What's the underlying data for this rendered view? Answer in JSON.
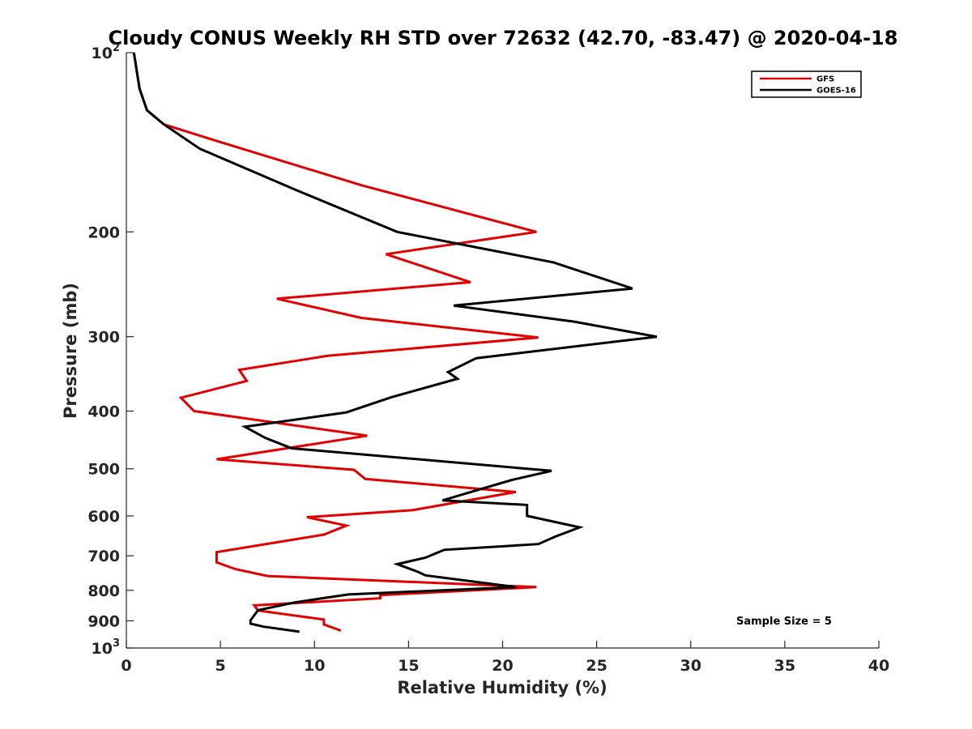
{
  "chart_data": {
    "type": "line",
    "title": "Cloudy CONUS Weekly RH STD over 72632 (42.70, -83.47) @ 2020-04-18",
    "xlabel": "Relative Humidity (%)",
    "ylabel": "Pressure (mb)",
    "xlim": [
      0,
      40
    ],
    "ylim": [
      100,
      1000
    ],
    "yscale": "log",
    "yreversed": true,
    "grid": false,
    "legend_position": "top-right",
    "x_ticks": [
      "0",
      "5",
      "10",
      "15",
      "20",
      "25",
      "30",
      "35",
      "40"
    ],
    "y_ticks": [
      {
        "value": 100,
        "base": "10",
        "exp": "2"
      },
      {
        "value": 200,
        "label": "200"
      },
      {
        "value": 300,
        "label": "300"
      },
      {
        "value": 400,
        "label": "400"
      },
      {
        "value": 500,
        "label": "500"
      },
      {
        "value": 600,
        "label": "600"
      },
      {
        "value": 700,
        "label": "700"
      },
      {
        "value": 800,
        "label": "800"
      },
      {
        "value": 900,
        "label": "900"
      },
      {
        "value": 1000,
        "base": "10",
        "exp": "3"
      }
    ],
    "annotation": "Sample Size = 5",
    "series": [
      {
        "name": "GFS",
        "color": "#e00000",
        "points": [
          [
            0.4,
            100
          ],
          [
            0.7,
            115
          ],
          [
            1.1,
            125
          ],
          [
            2.0,
            132
          ],
          [
            4.9,
            141
          ],
          [
            12.5,
            167
          ],
          [
            21.8,
            200
          ],
          [
            13.8,
            218
          ],
          [
            18.3,
            243
          ],
          [
            8.0,
            259
          ],
          [
            12.5,
            279
          ],
          [
            21.9,
            301
          ],
          [
            10.7,
            323
          ],
          [
            6.0,
            341
          ],
          [
            6.4,
            356
          ],
          [
            2.9,
            380
          ],
          [
            3.6,
            400
          ],
          [
            12.8,
            440
          ],
          [
            4.8,
            482
          ],
          [
            12.1,
            502
          ],
          [
            12.7,
            520
          ],
          [
            20.7,
            547
          ],
          [
            15.2,
            587
          ],
          [
            9.6,
            603
          ],
          [
            11.7,
            623
          ],
          [
            10.5,
            645
          ],
          [
            4.8,
            690
          ],
          [
            4.8,
            718
          ],
          [
            5.8,
            737
          ],
          [
            7.5,
            757
          ],
          [
            21.8,
            790
          ],
          [
            13.5,
            815
          ],
          [
            13.5,
            825
          ],
          [
            6.8,
            848
          ],
          [
            7.0,
            865
          ],
          [
            10.5,
            896
          ],
          [
            10.5,
            913
          ],
          [
            11.4,
            935
          ]
        ]
      },
      {
        "name": "GOES-16",
        "color": "#000000",
        "points": [
          [
            0.4,
            100
          ],
          [
            0.7,
            115
          ],
          [
            1.1,
            125
          ],
          [
            2.0,
            132
          ],
          [
            3.9,
            145
          ],
          [
            9.0,
            170
          ],
          [
            14.4,
            200
          ],
          [
            22.7,
            225
          ],
          [
            26.9,
            249
          ],
          [
            17.4,
            266
          ],
          [
            23.8,
            283
          ],
          [
            28.2,
            300
          ],
          [
            18.6,
            326
          ],
          [
            17.1,
            344
          ],
          [
            17.6,
            353
          ],
          [
            14.1,
            379
          ],
          [
            11.7,
            402
          ],
          [
            6.3,
            425
          ],
          [
            7.4,
            444
          ],
          [
            8.8,
            462
          ],
          [
            22.6,
            504
          ],
          [
            20.5,
            522
          ],
          [
            18.4,
            546
          ],
          [
            16.8,
            565
          ],
          [
            21.3,
            575
          ],
          [
            21.3,
            600
          ],
          [
            24.1,
            627
          ],
          [
            22.8,
            650
          ],
          [
            21.9,
            669
          ],
          [
            16.9,
            684
          ],
          [
            15.9,
            705
          ],
          [
            14.4,
            723
          ],
          [
            15.5,
            745
          ],
          [
            15.9,
            755
          ],
          [
            20.7,
            790
          ],
          [
            11.8,
            813
          ],
          [
            10.3,
            826
          ],
          [
            8.9,
            839
          ],
          [
            7.0,
            864
          ],
          [
            6.6,
            898
          ],
          [
            6.6,
            910
          ],
          [
            7.3,
            921
          ],
          [
            9.2,
            939
          ]
        ]
      }
    ]
  }
}
